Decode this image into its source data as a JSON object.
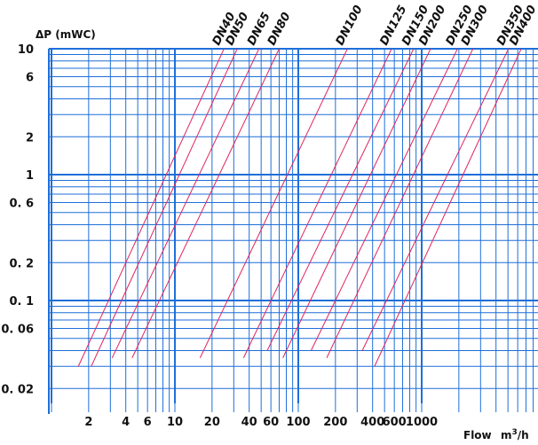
{
  "chart_data": {
    "type": "line",
    "title": "",
    "ylabel": "ΔP (mWC)",
    "xlabel": "Flow",
    "xlabel_unit": "m3/h",
    "x_scale": "log",
    "y_scale": "log",
    "xlim": [
      1,
      3000
    ],
    "ylim": [
      0.01,
      10
    ],
    "grid": true,
    "x_ticks": [
      "2",
      "4",
      "6",
      "10",
      "20",
      "40",
      "60",
      "100",
      "200",
      "400",
      "600",
      "1000"
    ],
    "y_ticks": [
      "10",
      "6",
      "2",
      "1",
      "0. 6",
      "0. 2",
      "0. 1",
      "0. 06",
      "0. 02"
    ],
    "colors": {
      "grid": "#1E6FD9",
      "curve": "#E0245E",
      "text": "#111111"
    },
    "series": [
      {
        "name": "DN40",
        "x": [
          1.65,
          25
        ],
        "y": [
          0.03,
          10
        ]
      },
      {
        "name": "DN50",
        "x": [
          2.1,
          32
        ],
        "y": [
          0.03,
          10
        ]
      },
      {
        "name": "DN65",
        "x": [
          3.1,
          48
        ],
        "y": [
          0.035,
          10
        ]
      },
      {
        "name": "DN80",
        "x": [
          4.5,
          70
        ],
        "y": [
          0.035,
          10
        ]
      },
      {
        "name": "DN100",
        "x": [
          16,
          250
        ],
        "y": [
          0.035,
          10
        ]
      },
      {
        "name": "DN125",
        "x": [
          36,
          570
        ],
        "y": [
          0.035,
          10
        ]
      },
      {
        "name": "DN150",
        "x": [
          56,
          860
        ],
        "y": [
          0.04,
          10
        ]
      },
      {
        "name": "DN200",
        "x": [
          75,
          1180
        ],
        "y": [
          0.035,
          10
        ]
      },
      {
        "name": "DN250",
        "x": [
          127,
          1950
        ],
        "y": [
          0.04,
          10
        ]
      },
      {
        "name": "DN300",
        "x": [
          170,
          2600
        ],
        "y": [
          0.035,
          10
        ]
      },
      {
        "name": "DN350",
        "x": [
          330,
          5050
        ],
        "y": [
          0.04,
          10
        ]
      },
      {
        "name": "DN400",
        "x": [
          415,
          6400
        ],
        "y": [
          0.03,
          10
        ]
      }
    ]
  }
}
